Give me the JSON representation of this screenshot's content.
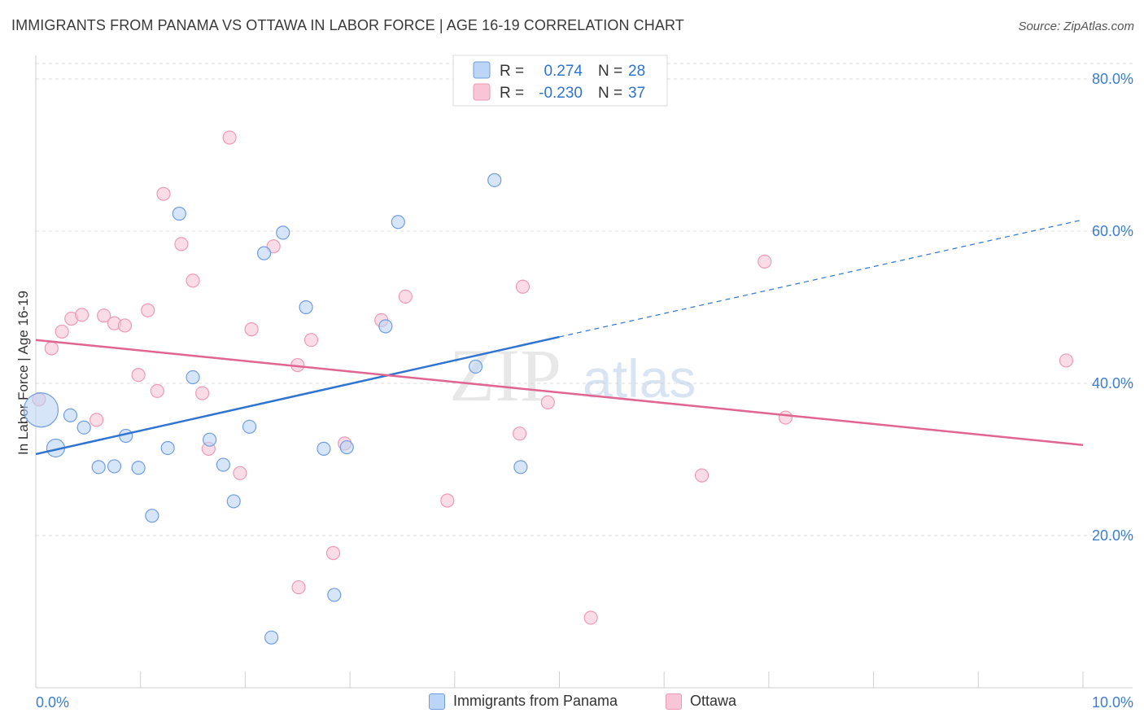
{
  "header": {
    "title": "IMMIGRANTS FROM PANAMA VS OTTAWA IN LABOR FORCE | AGE 16-19 CORRELATION CHART",
    "source": "Source: ZipAtlas.com"
  },
  "watermark": {
    "text_a": "ZIP",
    "text_b": "atlas"
  },
  "colors": {
    "blue": "#2f74d0",
    "blue_fill": "#bcd4f5",
    "blue_stroke": "#6f9ee0",
    "pink": "#e06591",
    "pink_fill": "#f7c5d5",
    "pink_stroke": "#ee9ab6",
    "grid": "#dcdcdc",
    "axis_text": "#3c7dd0"
  },
  "legend_top": {
    "rows": [
      {
        "r_label": "R =",
        "r_value": "0.274",
        "n_label": "N =",
        "n_value": "28"
      },
      {
        "r_label": "R =",
        "r_value": "-0.230",
        "n_label": "N =",
        "n_value": "37"
      }
    ]
  },
  "legend_bottom": {
    "items": [
      {
        "label": "Immigrants from Panama"
      },
      {
        "label": "Ottawa"
      }
    ]
  },
  "chart_data": {
    "type": "scatter",
    "title": "IMMIGRANTS FROM PANAMA VS OTTAWA IN LABOR FORCE | AGE 16-19 CORRELATION CHART",
    "xlabel": "",
    "ylabel": "In Labor Force | Age 16-19",
    "xlim": [
      0,
      10
    ],
    "ylim": [
      0,
      80
    ],
    "x_tick_labels": [
      "0.0%",
      "10.0%"
    ],
    "y_ticks": [
      20,
      40,
      60,
      80
    ],
    "y_tick_labels": [
      "20.0%",
      "40.0%",
      "60.0%",
      "80.0%"
    ],
    "grid": true,
    "series": [
      {
        "name": "Immigrants from Panama",
        "color": "blue",
        "r": 0.274,
        "n": 28,
        "trend": {
          "x0": 0.0,
          "y0": 30.7,
          "x1": 5.0,
          "y1": 46.1,
          "dash_to_x": 10.0,
          "dash_to_y": 61.5
        },
        "points": [
          [
            0.05,
            36.5,
            "large"
          ],
          [
            0.19,
            31.5,
            "medium"
          ],
          [
            0.33,
            35.8
          ],
          [
            0.46,
            34.2
          ],
          [
            0.6,
            29.0
          ],
          [
            0.75,
            29.1
          ],
          [
            0.86,
            33.1
          ],
          [
            0.98,
            28.9
          ],
          [
            1.11,
            22.6
          ],
          [
            1.26,
            31.5
          ],
          [
            1.37,
            62.3
          ],
          [
            1.5,
            40.8
          ],
          [
            1.66,
            32.6
          ],
          [
            1.79,
            29.3
          ],
          [
            1.89,
            24.5
          ],
          [
            2.04,
            34.3
          ],
          [
            2.18,
            57.1
          ],
          [
            2.36,
            59.8
          ],
          [
            2.58,
            50.0
          ],
          [
            2.75,
            31.4
          ],
          [
            2.85,
            12.2
          ],
          [
            2.97,
            31.6
          ],
          [
            3.34,
            47.5
          ],
          [
            3.46,
            61.2
          ],
          [
            4.2,
            42.2
          ],
          [
            4.38,
            66.7
          ],
          [
            4.63,
            29.0
          ],
          [
            2.25,
            6.6
          ]
        ]
      },
      {
        "name": "Ottawa",
        "color": "pink",
        "r": -0.23,
        "n": 37,
        "trend": {
          "x0": 0.0,
          "y0": 45.7,
          "x1": 10.0,
          "y1": 31.9
        },
        "points": [
          [
            0.03,
            37.9
          ],
          [
            0.15,
            44.6
          ],
          [
            0.25,
            46.8
          ],
          [
            0.34,
            48.5
          ],
          [
            0.44,
            49.0
          ],
          [
            0.58,
            35.2
          ],
          [
            0.65,
            48.9
          ],
          [
            0.75,
            47.9
          ],
          [
            0.85,
            47.6
          ],
          [
            0.98,
            41.1
          ],
          [
            1.07,
            49.6
          ],
          [
            1.16,
            39.0
          ],
          [
            1.22,
            64.9
          ],
          [
            1.39,
            58.3
          ],
          [
            1.5,
            53.5
          ],
          [
            1.59,
            38.7
          ],
          [
            1.65,
            31.4
          ],
          [
            1.85,
            72.3
          ],
          [
            1.95,
            28.2
          ],
          [
            2.06,
            47.1
          ],
          [
            2.27,
            58.0
          ],
          [
            2.5,
            42.4
          ],
          [
            2.63,
            45.7
          ],
          [
            2.51,
            13.2
          ],
          [
            2.84,
            17.7
          ],
          [
            2.95,
            32.1
          ],
          [
            3.3,
            48.3
          ],
          [
            3.53,
            51.4
          ],
          [
            3.93,
            24.6
          ],
          [
            4.65,
            52.7
          ],
          [
            4.89,
            37.5
          ],
          [
            4.62,
            33.4
          ],
          [
            5.3,
            9.2
          ],
          [
            6.36,
            27.9
          ],
          [
            6.96,
            56.0
          ],
          [
            7.16,
            35.5
          ],
          [
            9.84,
            43.0
          ]
        ]
      }
    ]
  }
}
